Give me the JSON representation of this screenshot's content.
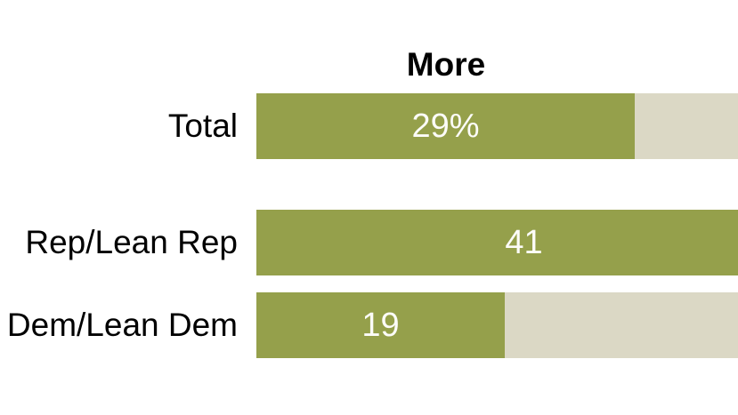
{
  "chart_data": {
    "type": "bar",
    "orientation": "horizontal",
    "title": "More",
    "categories": [
      "Total",
      "Rep/Lean Rep",
      "Dem/Lean Dem"
    ],
    "values": [
      29,
      41,
      19
    ],
    "value_labels": [
      "29%",
      "41",
      "19"
    ],
    "unit": "percent",
    "xlim": [
      0,
      100
    ],
    "grid": false,
    "legend": "none",
    "layout_note": "tracks and Rep bar clipped at right image edge",
    "colors": {
      "bar_fill": "#95A04B",
      "bar_track": "#DBD8C5",
      "value_text": "#FCFCF8",
      "label_text": "#000000",
      "title_text": "#000000",
      "background": "#FFFFFF"
    }
  }
}
